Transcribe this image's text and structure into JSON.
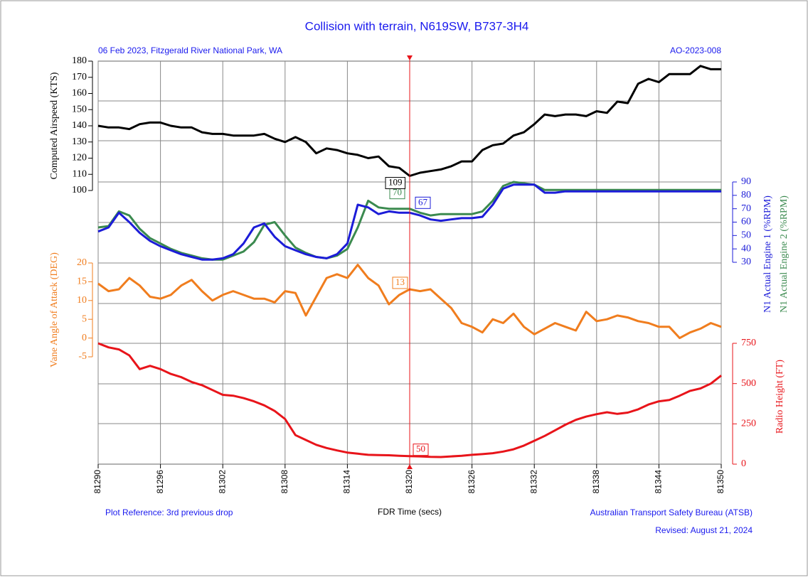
{
  "chart_data": {
    "type": "line",
    "title": "Collision with terrain, N619SW, B737-3H4",
    "subtitle": "06 Feb 2023, Fitzgerald River National Park, WA",
    "reference_code": "AO-2023-008",
    "xlabel": "FDR Time (secs)",
    "footer_left": "Plot Reference: 3rd previous drop",
    "footer_right": "Australian Transport Safety Bureau (ATSB)",
    "revised": "Revised: August 21, 2024",
    "cursor": 81320,
    "xlim": [
      81290,
      81350
    ],
    "xticks": [
      81290,
      81296,
      81302,
      81308,
      81314,
      81320,
      81326,
      81332,
      81338,
      81344,
      81350
    ],
    "x": [
      81290,
      81291,
      81292,
      81293,
      81294,
      81295,
      81296,
      81297,
      81298,
      81299,
      81300,
      81301,
      81302,
      81303,
      81304,
      81305,
      81306,
      81307,
      81308,
      81309,
      81310,
      81311,
      81312,
      81313,
      81314,
      81315,
      81316,
      81317,
      81318,
      81319,
      81320,
      81321,
      81322,
      81323,
      81324,
      81325,
      81326,
      81327,
      81328,
      81329,
      81330,
      81331,
      81332,
      81333,
      81334,
      81335,
      81336,
      81337,
      81338,
      81339,
      81340,
      81341,
      81342,
      81343,
      81344,
      81345,
      81346,
      81347,
      81348,
      81349,
      81350
    ],
    "panels": [
      {
        "side": "left",
        "ylim": [
          100,
          180
        ],
        "yticks": [
          100,
          110,
          120,
          130,
          140,
          150,
          160,
          170,
          180
        ],
        "series": [
          {
            "name": "Computed Airspeed (KTS)",
            "color": "#000000",
            "values": [
              140,
              139,
              139,
              138,
              141,
              142,
              142,
              140,
              139,
              139,
              136,
              135,
              135,
              134,
              134,
              134,
              135,
              132,
              130,
              133,
              130,
              123,
              126,
              125,
              123,
              122,
              120,
              121,
              115,
              114,
              109,
              111,
              112,
              113,
              115,
              118,
              118,
              125,
              128,
              129,
              134,
              136,
              141,
              147,
              146,
              147,
              147,
              146,
              149,
              148,
              155,
              154,
              166,
              169,
              167,
              172,
              172,
              172,
              177,
              175,
              175
            ]
          }
        ]
      },
      {
        "side": "right",
        "ylim": [
          30,
          90
        ],
        "yticks": [
          30,
          40,
          50,
          60,
          70,
          80,
          90
        ],
        "series": [
          {
            "name": "N1 Actual Engine 1 (%RPM)",
            "color": "#1c1cd8",
            "values": [
              53,
              56,
              67,
              60,
              52,
              46,
              42,
              39,
              36,
              34,
              32,
              32,
              33,
              36,
              44,
              56,
              59,
              49,
              42,
              39,
              36,
              34,
              33,
              36,
              44,
              73,
              71,
              66,
              68,
              67,
              67,
              65,
              62,
              61,
              62,
              63,
              63,
              64,
              73,
              85,
              88,
              88,
              88,
              82,
              82,
              83,
              83,
              83,
              83,
              83,
              83,
              83,
              83,
              83,
              83,
              83,
              83,
              83,
              83,
              83,
              83
            ]
          },
          {
            "name": "N1 Actual Engine 2 (%RPM)",
            "color": "#3b8a4f",
            "values": [
              56,
              57,
              68,
              65,
              55,
              48,
              44,
              40,
              37,
              35,
              33,
              32,
              32,
              35,
              38,
              45,
              58,
              60,
              50,
              41,
              37,
              34,
              33,
              35,
              40,
              56,
              76,
              71,
              70,
              70,
              70,
              67,
              65,
              66,
              66,
              66,
              66,
              68,
              76,
              87,
              90,
              89,
              88,
              84,
              84,
              84,
              84,
              84,
              84,
              84,
              84,
              84,
              84,
              84,
              84,
              84,
              84,
              84,
              84,
              84,
              84
            ]
          }
        ]
      },
      {
        "side": "left",
        "ylim": [
          -5,
          20
        ],
        "yticks": [
          -5,
          0,
          5,
          10,
          15,
          20
        ],
        "series": [
          {
            "name": "Vane Angle of Attack (DEG)",
            "color": "#f07d1e",
            "values": [
              14.5,
              12.5,
              13,
              16,
              14,
              11,
              10.5,
              11.5,
              14,
              15.5,
              12.5,
              10,
              11.5,
              12.5,
              11.5,
              10.5,
              10.5,
              9.5,
              12.5,
              12,
              6,
              11,
              16,
              17,
              16,
              19.5,
              16,
              14,
              9,
              11.5,
              13,
              12.5,
              13,
              10.5,
              8,
              4,
              3,
              1.5,
              5,
              4,
              6.5,
              3,
              1,
              2.5,
              4,
              3,
              2,
              7,
              4.5,
              5,
              6,
              5.5,
              4.5,
              4,
              3,
              3,
              0,
              1.5,
              2.5,
              4,
              3
            ]
          }
        ]
      },
      {
        "side": "right",
        "ylim": [
          0,
          750
        ],
        "yticks": [
          0,
          250,
          500,
          750
        ],
        "series": [
          {
            "name": "Radio Height (FT)",
            "color": "#e8141a",
            "values": [
              750,
              725,
              712,
              675,
              590,
              610,
              590,
              560,
              540,
              510,
              490,
              460,
              430,
              425,
              410,
              390,
              365,
              330,
              280,
              180,
              150,
              120,
              100,
              85,
              72,
              65,
              58,
              56,
              55,
              52,
              50,
              48,
              45,
              44,
              48,
              52,
              58,
              62,
              68,
              78,
              92,
              115,
              145,
              175,
              210,
              245,
              275,
              295,
              310,
              322,
              312,
              320,
              340,
              370,
              390,
              398,
              425,
              455,
              470,
              500,
              550
            ]
          }
        ]
      }
    ]
  }
}
